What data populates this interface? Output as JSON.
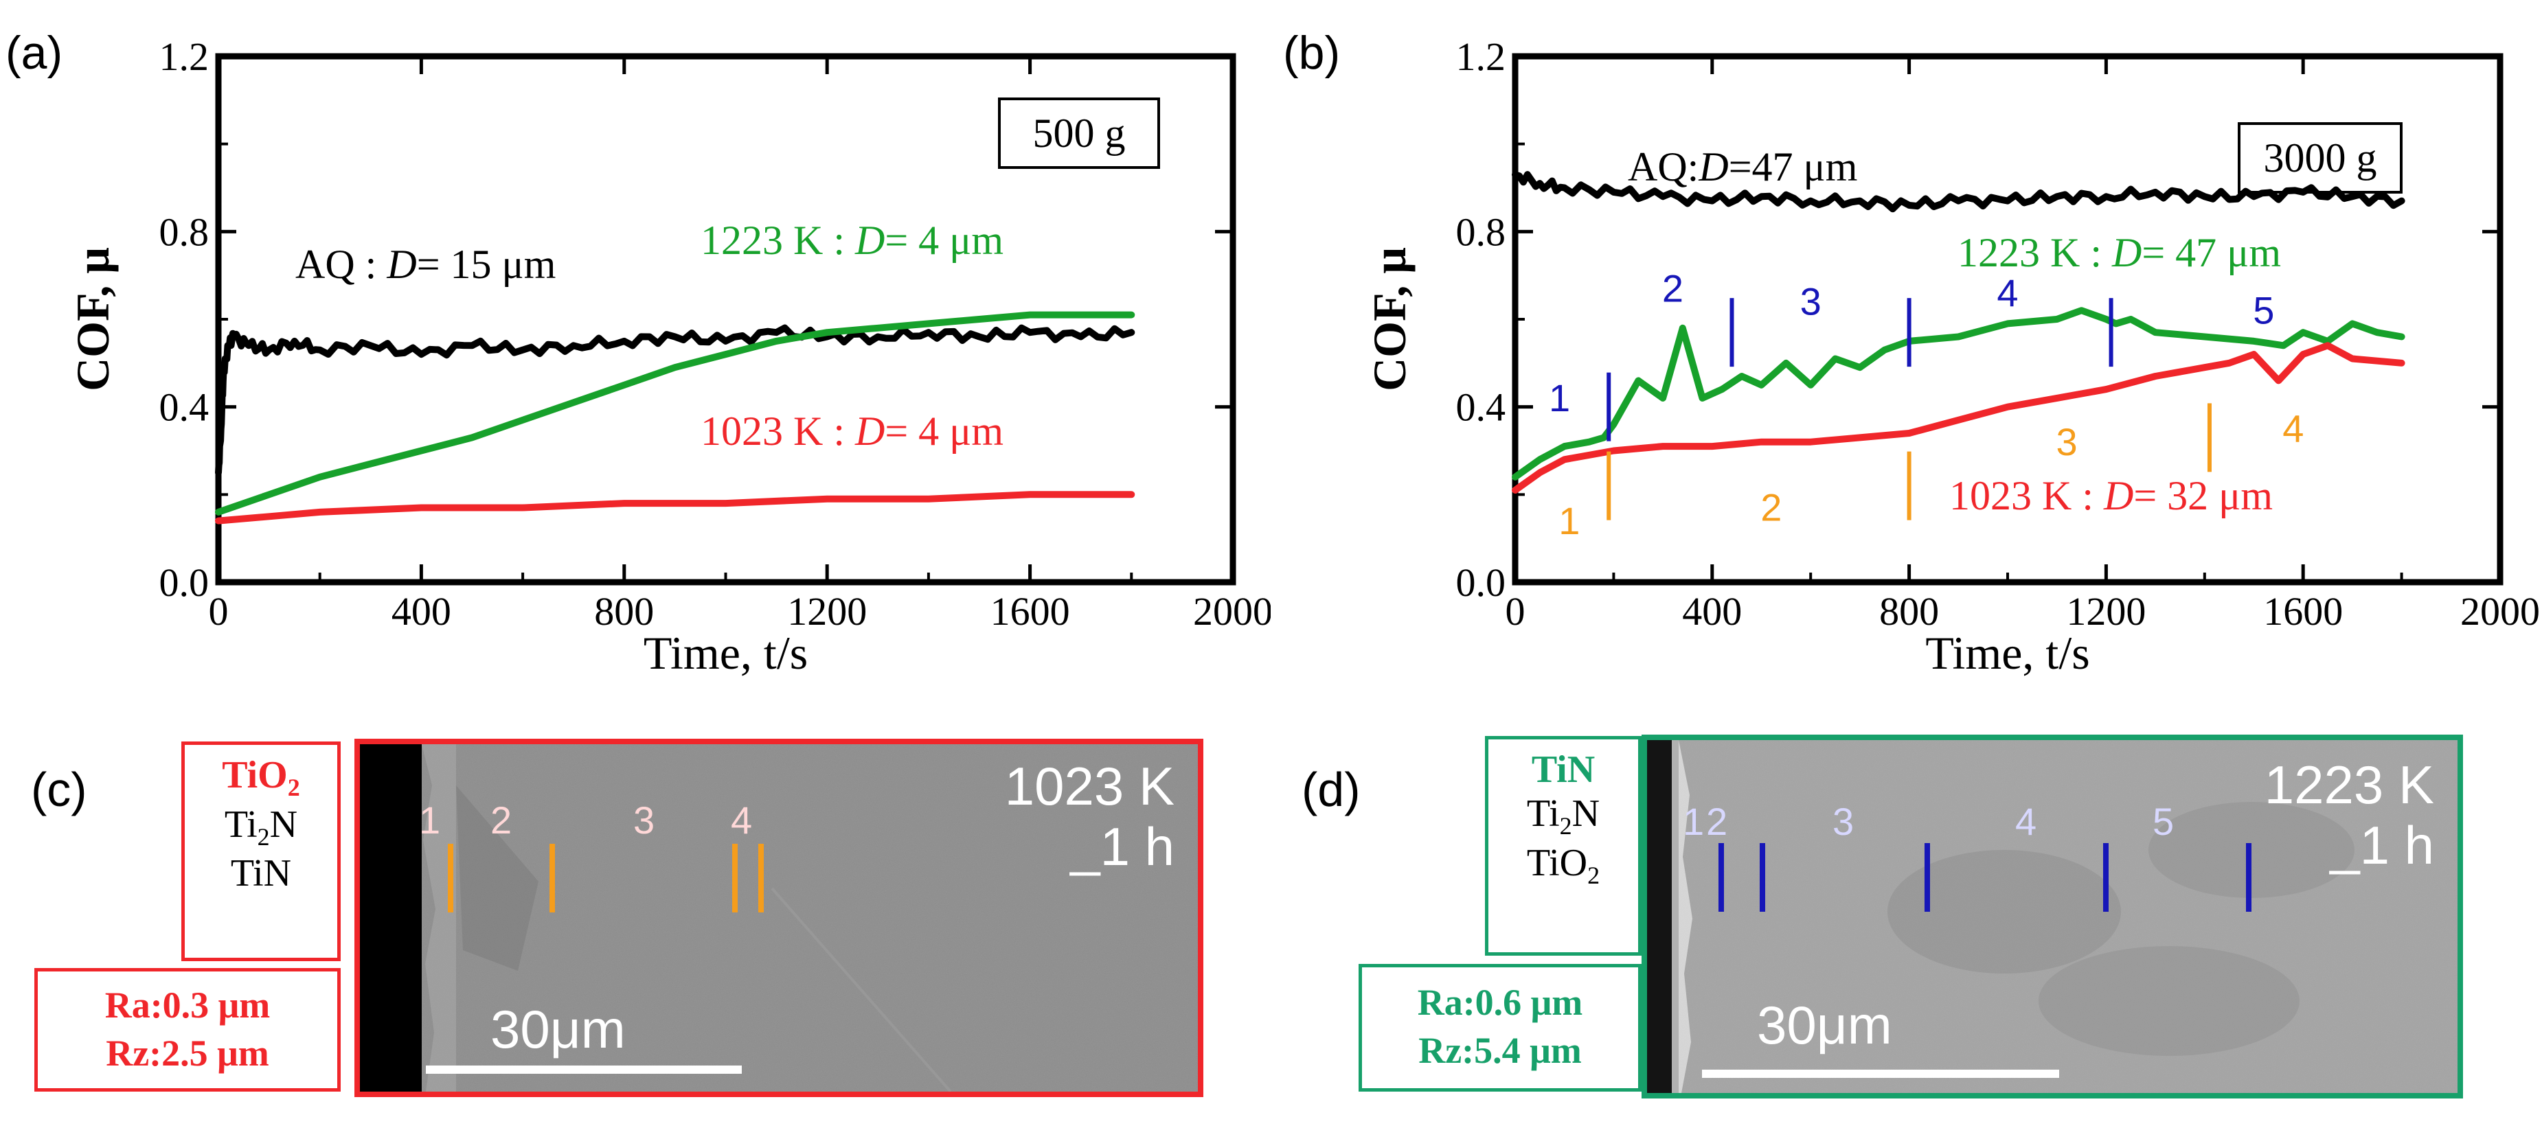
{
  "chart_data": [
    {
      "type": "line",
      "panel": "(a)",
      "xlabel": "Time, t/s",
      "ylabel": "COF, μ",
      "xlim": [
        0,
        2000
      ],
      "ylim": [
        0,
        1.2
      ],
      "xticks": [
        0,
        400,
        800,
        1200,
        1600,
        2000
      ],
      "yticks": [
        "0.0",
        "0.4",
        "0.8",
        "1.2"
      ],
      "load_label": "500 g",
      "series": [
        {
          "name_prefix": "AQ : ",
          "name_italic": "D",
          "name_suffix": "= 15 μm",
          "color": "#000000",
          "x": [
            0,
            5,
            10,
            20,
            30,
            60,
            100,
            150,
            200,
            300,
            400,
            500,
            600,
            700,
            800,
            900,
            1000,
            1100,
            1200,
            1300,
            1400,
            1500,
            1600,
            1700,
            1800
          ],
          "y": [
            0.25,
            0.35,
            0.48,
            0.54,
            0.56,
            0.54,
            0.53,
            0.55,
            0.53,
            0.54,
            0.52,
            0.54,
            0.53,
            0.54,
            0.55,
            0.56,
            0.55,
            0.57,
            0.56,
            0.56,
            0.57,
            0.56,
            0.57,
            0.56,
            0.57
          ]
        },
        {
          "name_prefix": "1223 K : ",
          "name_italic": "D",
          "name_suffix": "= 4 μm",
          "color": "#17a12b",
          "x": [
            0,
            100,
            200,
            300,
            400,
            500,
            600,
            700,
            800,
            900,
            1000,
            1100,
            1200,
            1300,
            1400,
            1500,
            1600,
            1700,
            1800
          ],
          "y": [
            0.16,
            0.2,
            0.24,
            0.27,
            0.3,
            0.33,
            0.37,
            0.41,
            0.45,
            0.49,
            0.52,
            0.55,
            0.57,
            0.58,
            0.59,
            0.6,
            0.61,
            0.61,
            0.61
          ]
        },
        {
          "name_prefix": "1023 K : ",
          "name_italic": "D",
          "name_suffix": "= 4 μm",
          "color": "#f0262a",
          "x": [
            0,
            100,
            200,
            400,
            600,
            800,
            1000,
            1200,
            1400,
            1600,
            1800
          ],
          "y": [
            0.14,
            0.15,
            0.16,
            0.17,
            0.17,
            0.18,
            0.18,
            0.19,
            0.19,
            0.2,
            0.2
          ]
        }
      ]
    },
    {
      "type": "line",
      "panel": "(b)",
      "xlabel": "Time, t/s",
      "ylabel": "COF, μ",
      "xlim": [
        0,
        2000
      ],
      "ylim": [
        0,
        1.2
      ],
      "xticks": [
        0,
        400,
        800,
        1200,
        1600,
        2000
      ],
      "yticks": [
        "0.0",
        "0.4",
        "0.8",
        "1.2"
      ],
      "load_label": "3000 g",
      "series": [
        {
          "name_prefix": "AQ:",
          "name_italic": "D",
          "name_suffix": "=47 μm",
          "color": "#000000",
          "x": [
            0,
            50,
            100,
            200,
            300,
            400,
            500,
            600,
            700,
            800,
            900,
            1000,
            1100,
            1200,
            1300,
            1400,
            1500,
            1600,
            1700,
            1800
          ],
          "y": [
            0.93,
            0.91,
            0.9,
            0.89,
            0.88,
            0.87,
            0.88,
            0.87,
            0.87,
            0.86,
            0.87,
            0.87,
            0.88,
            0.88,
            0.89,
            0.88,
            0.88,
            0.89,
            0.88,
            0.87
          ]
        },
        {
          "name_prefix": "1223 K : ",
          "name_italic": "D",
          "name_suffix": "= 47 μm",
          "color": "#17a12b",
          "x": [
            0,
            50,
            100,
            150,
            180,
            200,
            250,
            300,
            340,
            380,
            420,
            460,
            500,
            550,
            600,
            650,
            700,
            750,
            800,
            900,
            1000,
            1100,
            1150,
            1200,
            1220,
            1250,
            1300,
            1400,
            1500,
            1560,
            1600,
            1650,
            1700,
            1750,
            1800
          ],
          "y": [
            0.24,
            0.28,
            0.31,
            0.32,
            0.33,
            0.36,
            0.46,
            0.42,
            0.58,
            0.42,
            0.44,
            0.47,
            0.45,
            0.5,
            0.45,
            0.51,
            0.49,
            0.53,
            0.55,
            0.56,
            0.59,
            0.6,
            0.62,
            0.6,
            0.59,
            0.6,
            0.57,
            0.56,
            0.55,
            0.54,
            0.57,
            0.55,
            0.59,
            0.57,
            0.56
          ]
        },
        {
          "name_prefix": "1023 K : ",
          "name_italic": "D",
          "name_suffix": "= 32 μm",
          "color": "#f0262a",
          "x": [
            0,
            50,
            100,
            200,
            300,
            400,
            500,
            600,
            700,
            800,
            900,
            1000,
            1100,
            1200,
            1300,
            1400,
            1450,
            1500,
            1550,
            1600,
            1650,
            1700,
            1800
          ],
          "y": [
            0.21,
            0.25,
            0.28,
            0.3,
            0.31,
            0.31,
            0.32,
            0.32,
            0.33,
            0.34,
            0.37,
            0.4,
            0.42,
            0.44,
            0.47,
            0.49,
            0.5,
            0.52,
            0.46,
            0.52,
            0.54,
            0.51,
            0.5
          ]
        }
      ],
      "green_regions": {
        "numbers": [
          "1",
          "2",
          "3",
          "4",
          "5"
        ],
        "boundaries_x": [
          190,
          440,
          800,
          1210
        ],
        "color": "#1616b8"
      },
      "red_regions": {
        "numbers": [
          "1",
          "2",
          "3",
          "4"
        ],
        "boundaries_x": [
          190,
          800,
          1410
        ],
        "color": "#f59d1c"
      }
    }
  ],
  "panel_c": {
    "letter": "(c)",
    "temp": "1023 K",
    "time": "_1 h",
    "scalebar": "30μm",
    "region_numbers": [
      "1",
      "2",
      "3",
      "4"
    ],
    "phases": [
      "TiO₂",
      "Ti₂N",
      "TiN"
    ],
    "phase_top": "TiO",
    "phase_top_sub": "2",
    "phase_mid": "Ti",
    "phase_mid_sub": "2",
    "phase_mid_suffix": "N",
    "phase_bot": "TiN",
    "roughness": [
      "Ra:0.3 μm",
      "Rz:2.5 μm"
    ],
    "color": "#f0262a",
    "marker_color": "#f59d1c"
  },
  "panel_d": {
    "letter": "(d)",
    "temp": "1223 K",
    "time": "_1 h",
    "scalebar": "30μm",
    "region_numbers": [
      "1",
      "2",
      "3",
      "4",
      "5"
    ],
    "phase_top": "TiN",
    "phase_mid": "Ti",
    "phase_mid_sub": "2",
    "phase_mid_suffix": "N",
    "phase_bot": "TiO",
    "phase_bot_sub": "2",
    "roughness": [
      "Ra:0.6 μm",
      "Rz:5.4 μm"
    ],
    "color": "#17a06a",
    "marker_color": "#1616b8"
  }
}
